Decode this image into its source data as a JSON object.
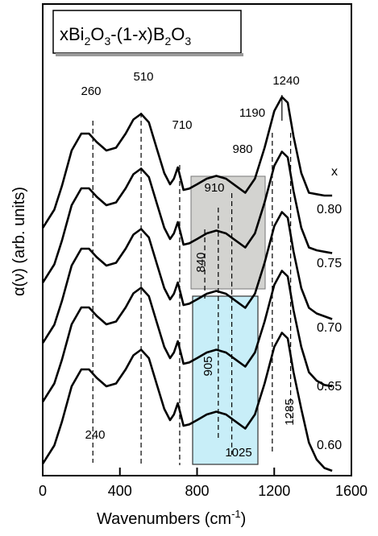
{
  "chart_data": {
    "type": "line",
    "title_parts": {
      "x": "x",
      "bi": "Bi",
      "s1": "2",
      "o": "O",
      "s2": "3",
      "mid": "-(1-x)B",
      "s3": "2",
      "o2": "O",
      "s4": "3"
    },
    "xlabel": {
      "main": "Wavenumbers (cm",
      "sup": "-1",
      "close": ")"
    },
    "ylabel": "α(ν) (arb. units)",
    "xlim": [
      0,
      1600
    ],
    "x_ticks": [
      "0",
      "400",
      "800",
      "1200",
      "1600"
    ],
    "x_tick_values": [
      0,
      400,
      800,
      1200,
      1600
    ],
    "series_header": "x",
    "series": [
      {
        "name": "0.80",
        "x": [
          0,
          60,
          100,
          150,
          200,
          240,
          280,
          330,
          380,
          430,
          470,
          510,
          550,
          590,
          630,
          660,
          680,
          700,
          715,
          730,
          760,
          800,
          850,
          900,
          950,
          1000,
          1050,
          1100,
          1150,
          1200,
          1240,
          1270,
          1300,
          1340,
          1380,
          1420,
          1460,
          1500
        ],
        "y": [
          0.05,
          0.18,
          0.35,
          0.6,
          0.72,
          0.72,
          0.66,
          0.6,
          0.62,
          0.72,
          0.82,
          0.86,
          0.8,
          0.62,
          0.44,
          0.36,
          0.4,
          0.48,
          0.4,
          0.32,
          0.33,
          0.36,
          0.4,
          0.42,
          0.4,
          0.35,
          0.3,
          0.4,
          0.62,
          0.88,
          0.98,
          0.94,
          0.7,
          0.44,
          0.3,
          0.29,
          0.28,
          0.28
        ]
      },
      {
        "name": "0.75",
        "x": [
          0,
          60,
          100,
          150,
          200,
          240,
          280,
          330,
          380,
          430,
          470,
          510,
          550,
          590,
          630,
          660,
          680,
          700,
          715,
          730,
          760,
          800,
          850,
          900,
          950,
          1000,
          1050,
          1100,
          1150,
          1200,
          1240,
          1270,
          1300,
          1340,
          1380,
          1420,
          1460,
          1500
        ],
        "y": [
          0.05,
          0.18,
          0.35,
          0.6,
          0.72,
          0.72,
          0.66,
          0.6,
          0.62,
          0.72,
          0.82,
          0.86,
          0.8,
          0.62,
          0.44,
          0.36,
          0.4,
          0.48,
          0.4,
          0.32,
          0.33,
          0.36,
          0.4,
          0.42,
          0.4,
          0.35,
          0.3,
          0.4,
          0.62,
          0.88,
          0.98,
          0.94,
          0.7,
          0.44,
          0.3,
          0.28,
          0.27,
          0.26
        ]
      },
      {
        "name": "0.70",
        "x": [
          0,
          60,
          100,
          150,
          200,
          240,
          280,
          330,
          380,
          430,
          470,
          510,
          550,
          590,
          630,
          660,
          680,
          700,
          715,
          730,
          760,
          800,
          850,
          900,
          950,
          1000,
          1050,
          1100,
          1150,
          1200,
          1240,
          1270,
          1300,
          1340,
          1380,
          1420,
          1460,
          1500
        ],
        "y": [
          0.05,
          0.18,
          0.35,
          0.6,
          0.72,
          0.72,
          0.66,
          0.6,
          0.62,
          0.72,
          0.82,
          0.86,
          0.8,
          0.62,
          0.44,
          0.36,
          0.4,
          0.48,
          0.4,
          0.32,
          0.33,
          0.36,
          0.4,
          0.42,
          0.4,
          0.35,
          0.3,
          0.4,
          0.62,
          0.88,
          0.98,
          0.94,
          0.7,
          0.44,
          0.3,
          0.26,
          0.24,
          0.22
        ]
      },
      {
        "name": "0.65",
        "x": [
          0,
          60,
          100,
          150,
          200,
          240,
          280,
          330,
          380,
          430,
          470,
          510,
          550,
          590,
          630,
          660,
          680,
          700,
          715,
          730,
          760,
          800,
          850,
          900,
          950,
          1000,
          1050,
          1100,
          1150,
          1200,
          1240,
          1270,
          1300,
          1340,
          1380,
          1420,
          1460,
          1500
        ],
        "y": [
          0.05,
          0.18,
          0.35,
          0.6,
          0.72,
          0.72,
          0.66,
          0.6,
          0.62,
          0.72,
          0.82,
          0.86,
          0.8,
          0.62,
          0.44,
          0.36,
          0.4,
          0.48,
          0.4,
          0.32,
          0.33,
          0.36,
          0.4,
          0.42,
          0.4,
          0.35,
          0.3,
          0.4,
          0.62,
          0.88,
          0.98,
          0.94,
          0.7,
          0.44,
          0.26,
          0.2,
          0.17,
          0.16
        ]
      },
      {
        "name": "0.60",
        "x": [
          0,
          60,
          100,
          150,
          200,
          240,
          280,
          330,
          380,
          430,
          470,
          510,
          550,
          590,
          630,
          660,
          680,
          700,
          715,
          730,
          760,
          800,
          850,
          900,
          950,
          1000,
          1050,
          1100,
          1150,
          1200,
          1240,
          1270,
          1300,
          1340,
          1380,
          1420,
          1460,
          1500
        ],
        "y": [
          0.05,
          0.18,
          0.35,
          0.6,
          0.72,
          0.72,
          0.66,
          0.6,
          0.62,
          0.72,
          0.82,
          0.86,
          0.8,
          0.62,
          0.44,
          0.36,
          0.4,
          0.48,
          0.4,
          0.32,
          0.33,
          0.36,
          0.4,
          0.42,
          0.4,
          0.35,
          0.3,
          0.4,
          0.62,
          0.88,
          0.98,
          0.94,
          0.7,
          0.44,
          0.2,
          0.08,
          0.02,
          0.0
        ]
      }
    ],
    "dashed_lines": [
      260,
      510,
      710,
      840,
      910,
      980,
      1190,
      1285
    ],
    "peak_labels": [
      {
        "text": "260",
        "x": 260
      },
      {
        "text": "510",
        "x": 510
      },
      {
        "text": "710",
        "x": 710
      },
      {
        "text": "1190",
        "x": 1190
      },
      {
        "text": "1240",
        "x": 1240
      },
      {
        "text": "980",
        "x": 980
      },
      {
        "text": "910",
        "x": 910
      },
      {
        "text": "840",
        "x": 840
      },
      {
        "text": "905",
        "x": 905
      },
      {
        "text": "240",
        "x": 240
      },
      {
        "text": "1025",
        "x": 1025
      },
      {
        "text": "1285",
        "x": 1285
      }
    ],
    "gray_region_x": [
      770,
      1020
    ],
    "cyan_region_x": [
      770,
      1100
    ],
    "colors": {
      "gray_box": "#d3d3d0",
      "cyan_box": "#c8eef8",
      "line": "#000000"
    }
  }
}
